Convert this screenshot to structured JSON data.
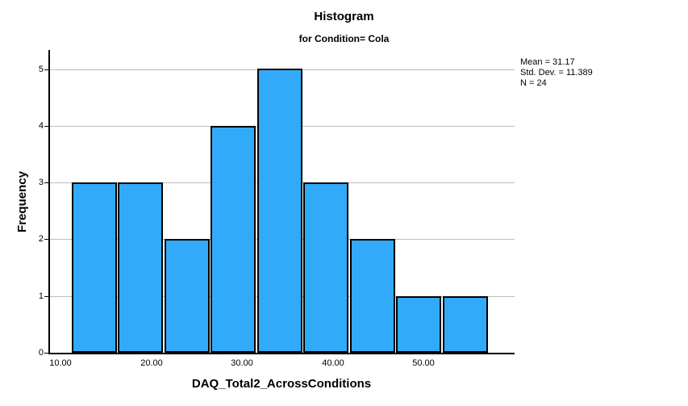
{
  "chart_data": {
    "type": "bar",
    "subtype": "histogram",
    "title": "Histogram",
    "subtitle": "for Condition= Cola",
    "xlabel": "DAQ_Total2_AcrossConditions",
    "ylabel": "Frequency",
    "bins": {
      "first_bin_start": 11.2,
      "bin_width": 5.1,
      "frequencies": [
        3,
        3,
        2,
        4,
        5,
        3,
        2,
        1,
        1
      ]
    },
    "x_ticks": [
      {
        "value": 10,
        "label": "10.00"
      },
      {
        "value": 20,
        "label": "20.00"
      },
      {
        "value": 30,
        "label": "30.00"
      },
      {
        "value": 40,
        "label": "40.00"
      },
      {
        "value": 50,
        "label": "50.00"
      }
    ],
    "y_ticks": [
      {
        "value": 0,
        "label": "0"
      },
      {
        "value": 1,
        "label": "1"
      },
      {
        "value": 2,
        "label": "2"
      },
      {
        "value": 3,
        "label": "3"
      },
      {
        "value": 4,
        "label": "4"
      },
      {
        "value": 5,
        "label": "5"
      }
    ],
    "xlim": [
      8.7,
      60.2
    ],
    "ylim": [
      0,
      5.33
    ],
    "grid": "horizontal-only",
    "legend": "none",
    "annotation": {
      "lines": [
        "Mean = 31.17",
        "Std. Dev. = 11.389",
        "N = 24"
      ],
      "position": "top-right-outside"
    },
    "colors": {
      "bar_fill": "#32AAFA",
      "bar_border": "#000000",
      "gridline": "#BDBDBD",
      "axis": "#000000",
      "text": "#000000",
      "background": "#ffffff"
    }
  }
}
